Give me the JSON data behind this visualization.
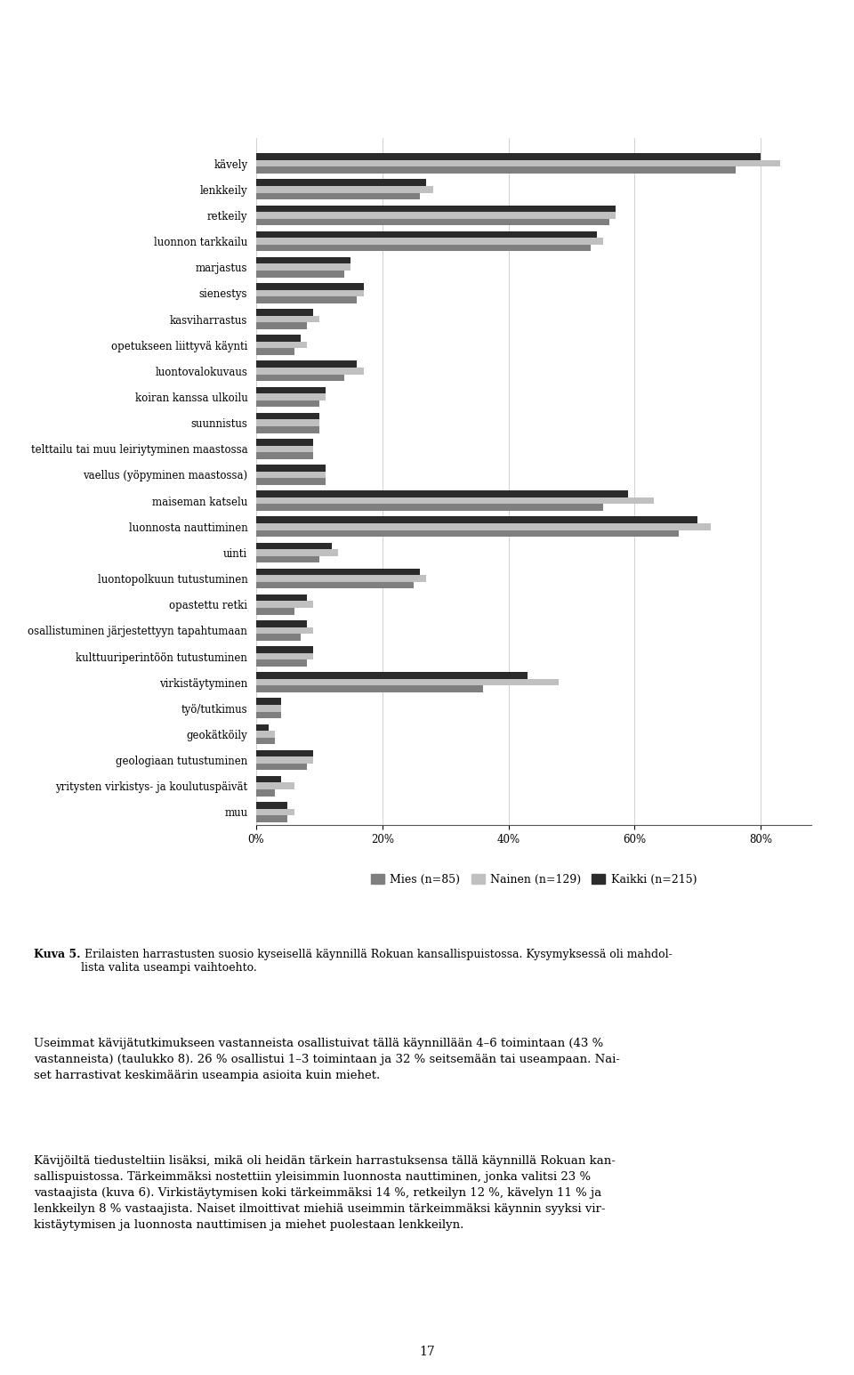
{
  "categories": [
    "kävely",
    "lenkkeily",
    "retkeily",
    "luonnon tarkkailu",
    "marjastus",
    "sienestys",
    "kasviharrastus",
    "opetukseen liittyvä käynti",
    "luontovalokuvaus",
    "koiran kanssa ulkoilu",
    "suunnistus",
    "telttailu tai muu leiriytyminen maastossa",
    "vaellus (yöpyminen maastossa)",
    "maiseman katselu",
    "luonnosta nauttiminen",
    "uinti",
    "luontopolkuun tutustuminen",
    "opastettu retki",
    "osallistuminen järjestettyyn tapahtumaan",
    "kulttuuriperintöön tutustuminen",
    "virkistäytyminen",
    "työ/tutkimus",
    "geokätköily",
    "geologiaan tutustuminen",
    "yritysten virkistys- ja koulutusпäivät",
    "muu"
  ],
  "mies": [
    76,
    26,
    56,
    53,
    14,
    16,
    8,
    6,
    14,
    10,
    10,
    9,
    11,
    55,
    67,
    10,
    25,
    6,
    7,
    8,
    36,
    4,
    3,
    8,
    3,
    5
  ],
  "nainen": [
    83,
    28,
    57,
    55,
    15,
    17,
    10,
    8,
    17,
    11,
    10,
    9,
    11,
    63,
    72,
    13,
    27,
    9,
    9,
    9,
    48,
    4,
    3,
    9,
    6,
    6
  ],
  "kaikki": [
    80,
    27,
    57,
    54,
    15,
    17,
    9,
    7,
    16,
    11,
    10,
    9,
    11,
    59,
    70,
    12,
    26,
    8,
    8,
    9,
    43,
    4,
    2,
    9,
    4,
    5
  ],
  "color_mies": "#7f7f7f",
  "color_nainen": "#c0c0c0",
  "color_kaikki": "#2b2b2b",
  "legend_labels": [
    "Mies (n=85)",
    "Nainen (n=129)",
    "Kaikki (n=215)"
  ],
  "xlim": [
    0,
    88
  ],
  "xticks": [
    0,
    20,
    40,
    60,
    80
  ],
  "xticklabels": [
    "0%",
    "20%",
    "40%",
    "60%",
    "80%"
  ],
  "bar_height": 0.26,
  "fontsize_labels": 8.5,
  "fontsize_ticks": 8.5,
  "fontsize_legend": 9,
  "caption_bold": "Kuva 5.",
  "caption_text": " Erilaisten harrastusten suosio kyseisellä käynnillä Rokuan kansallispuistossa. Kysymyksessä oli mahdol-\nlista valita useampi vaihtoehto.",
  "para1": "Useimmat kävijätutkimukseen vastanneista osallistuivat tällä käynnillään 4–6 toimintaan (43 %\nvastanneista) (taulukko 8). 26 % osallistui 1–3 toimintaan ja 32 % seitsemään tai useampaan. Nai-\nset harrastivat keskimäärin useampia asioita kuin miehet.",
  "para2": "Kävijöiltä tiedusteltiin lisäksi, mikä oli heidän tärkein harrastuksensa tällä käynnillä Rokuan kan-\nsallispuistossa. Tärkeimmäksi nostettiin yleisimmin luonnosta nauttiminen, jonka valitsi 23 %\nvastaajista (kuva 6). Virkistäytymisen koki tärkeimmäksi 14 %, retkeilyn 12 %, kävelyn 11 % ja\nlenkkeilyn 8 % vastaajista. Naiset ilmoittivat miehiä useimmin tärkeimmäksi käynnin syyksi vir-\nkistäytymisen ja luonnosta nauttimisen ja miehet puolestaan lenkkeilyn.",
  "page_number": "17",
  "figsize": [
    9.6,
    15.45
  ],
  "dpi": 100
}
